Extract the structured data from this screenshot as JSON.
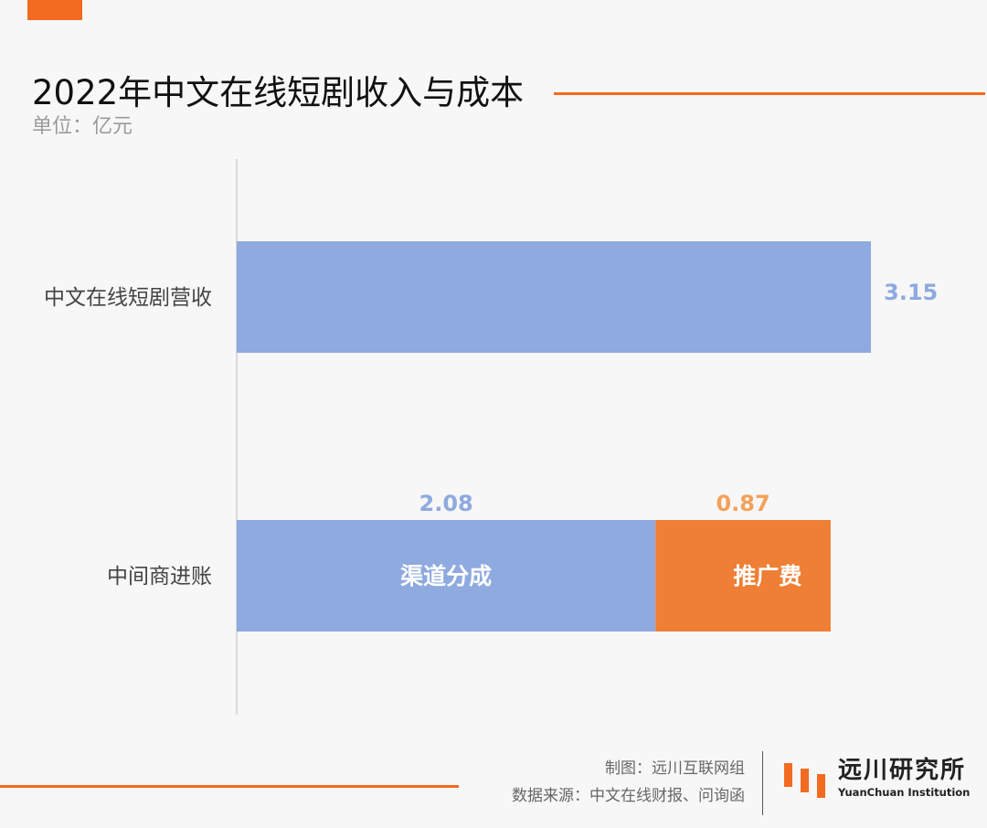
{
  "header": {
    "title": "2022年中文在线短剧收入与成本",
    "unit": "单位：亿元"
  },
  "chart_data": {
    "type": "bar",
    "orientation": "horizontal",
    "stacked": true,
    "title": "2022年中文在线短剧收入与成本",
    "unit": "单位：亿元",
    "xlabel": "",
    "ylabel": "",
    "xlim": [
      0,
      3.15
    ],
    "grid": false,
    "legend": "none",
    "categories": [
      "中文在线短剧营收",
      "中间商进账"
    ],
    "series": [
      {
        "name": "",
        "color": "#8eaadf",
        "values": [
          3.15,
          null
        ],
        "value_labels": [
          "3.15",
          null
        ]
      },
      {
        "name": "渠道分成",
        "color": "#8eaadf",
        "values": [
          null,
          2.08
        ],
        "value_labels": [
          null,
          "2.08"
        ]
      },
      {
        "name": "推广费",
        "color": "#ef7f34",
        "values": [
          null,
          0.87
        ],
        "value_labels": [
          null,
          "0.87"
        ]
      }
    ]
  },
  "footer": {
    "credit_line1": "制图：远川互联网组",
    "credit_line2": "数据来源：中文在线财报、问询函",
    "logo_cn": "远川研究所",
    "logo_en": "YuanChuan Institution"
  },
  "colors": {
    "accent": "#f26b21",
    "bar_blue": "#8eaadf",
    "bar_orange": "#ef7f34",
    "label_blue": "#8eaadf",
    "label_orange": "#f5a05a"
  }
}
